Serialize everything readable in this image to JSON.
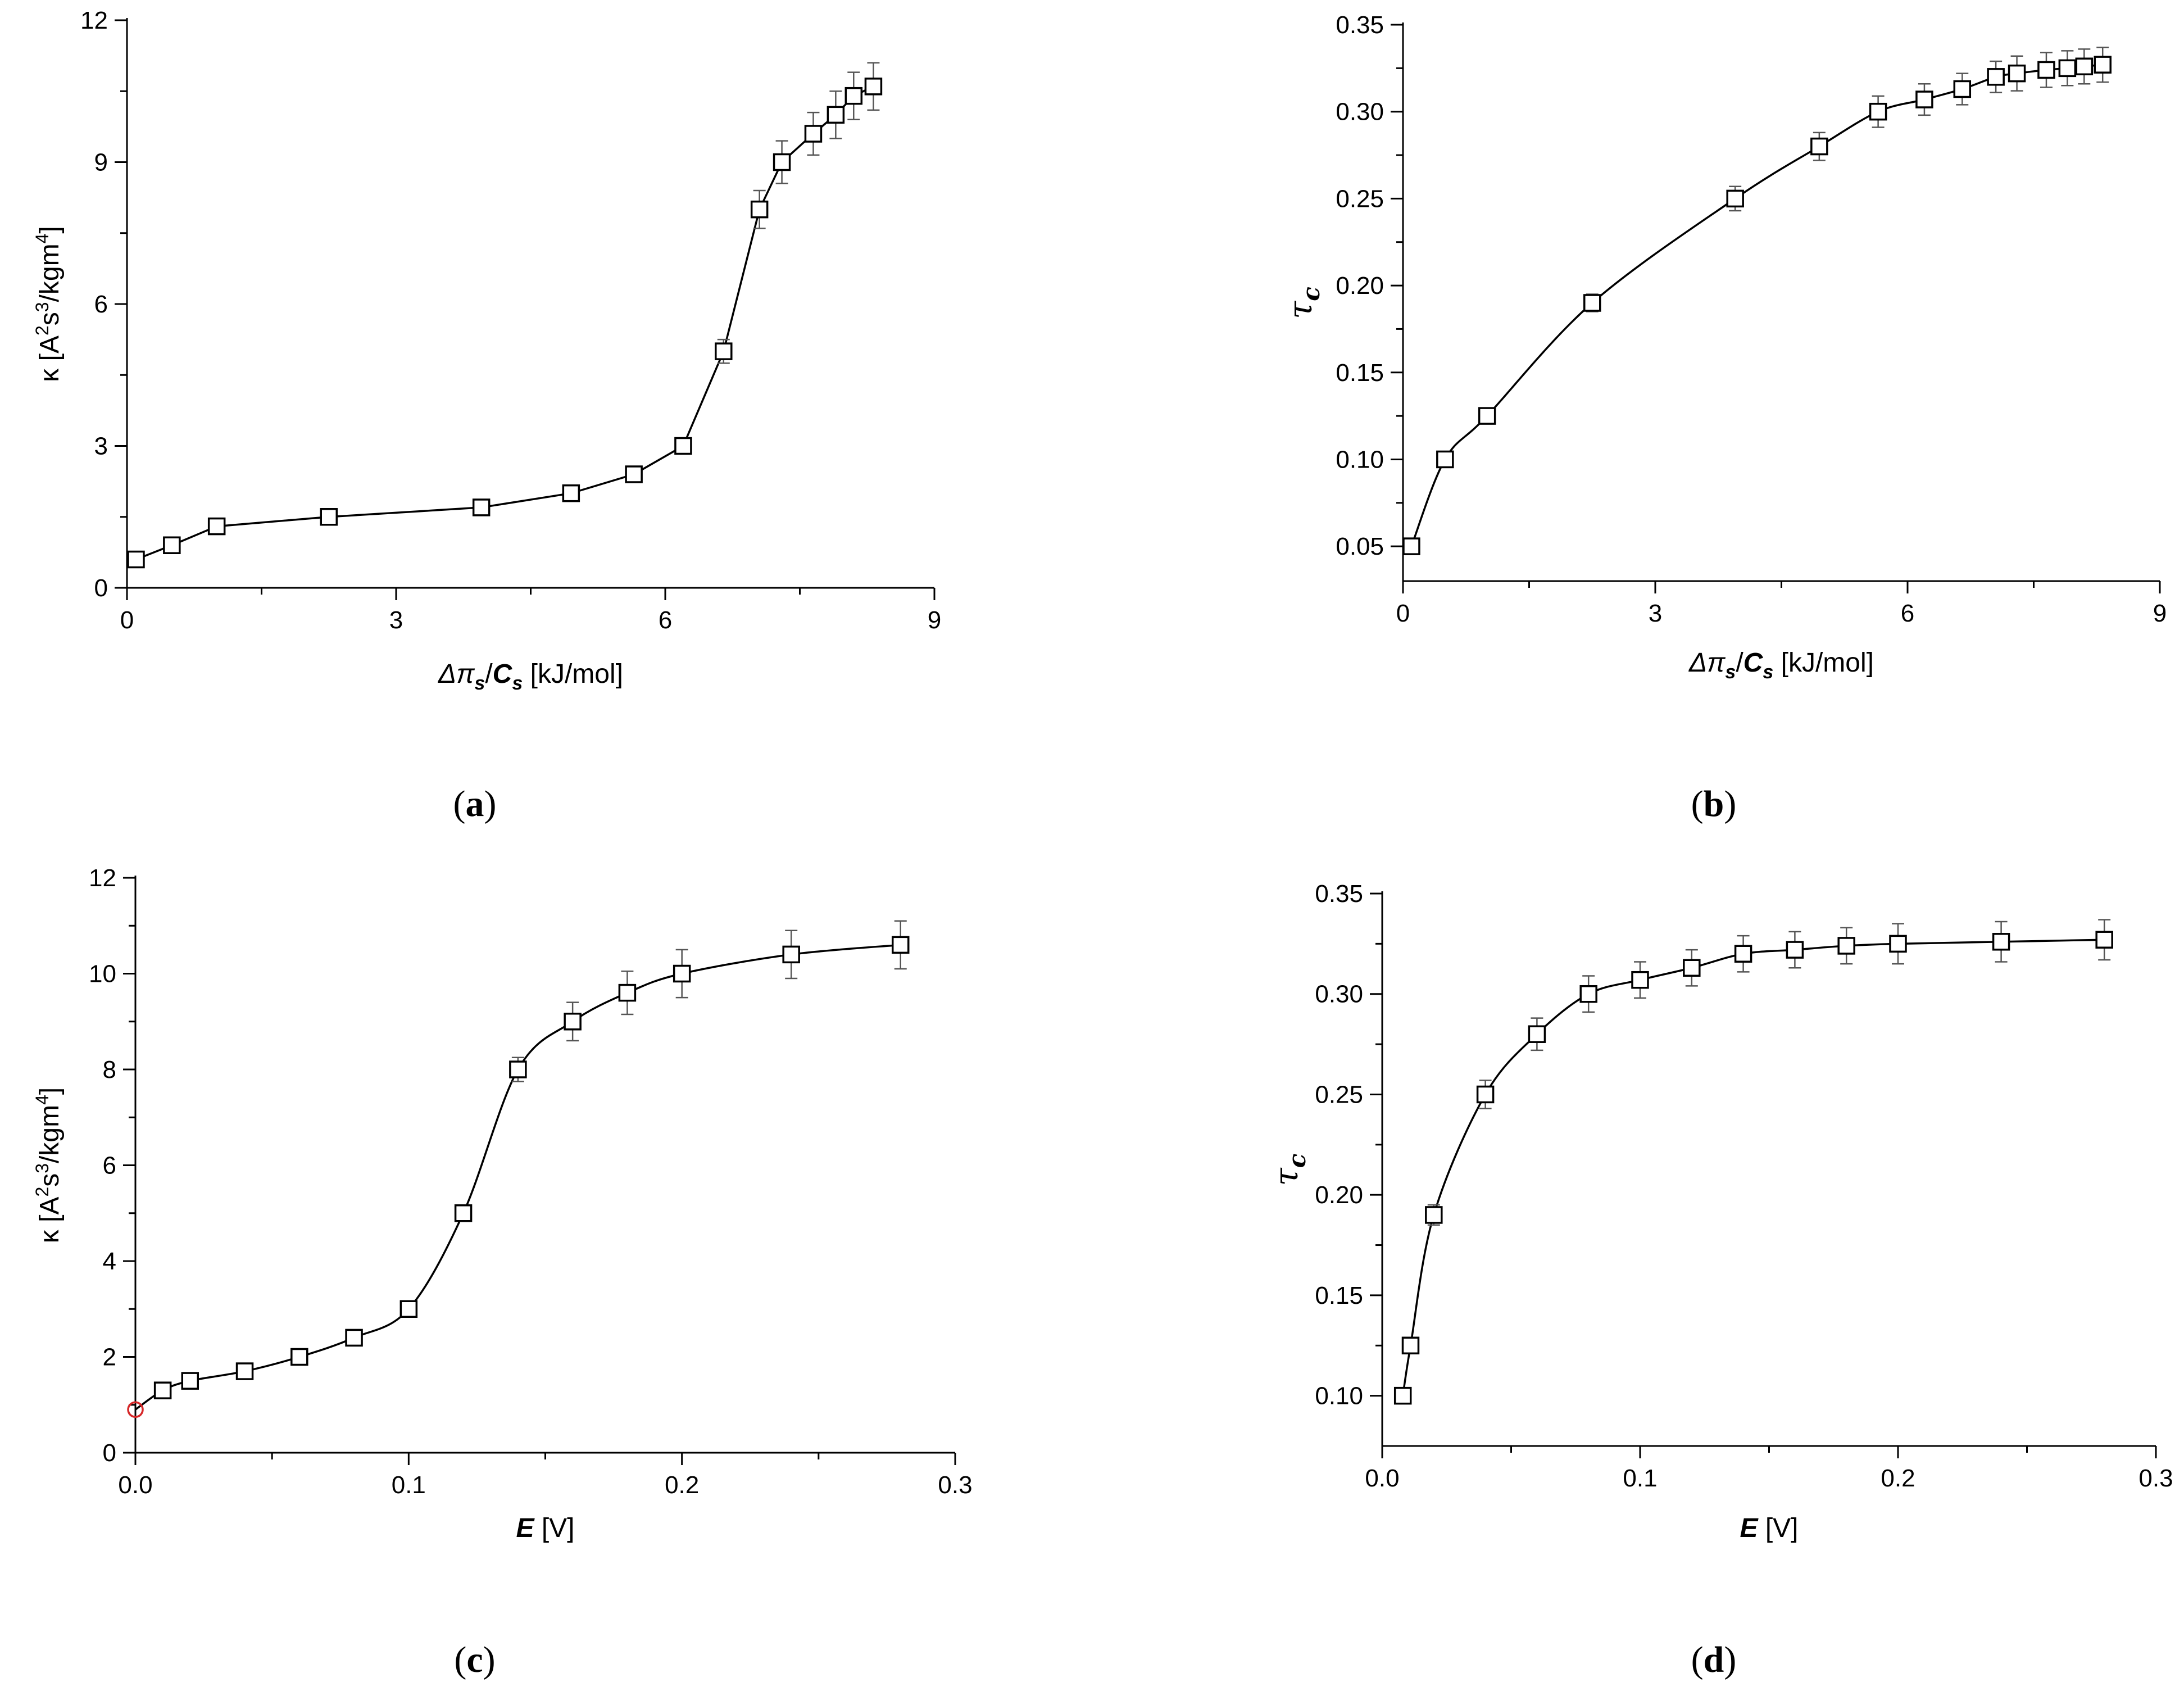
{
  "figure": {
    "panels": [
      "(a)",
      "(b)",
      "(c)",
      "(d)"
    ]
  },
  "chart_data": [
    {
      "id": "a",
      "type": "line",
      "panel_label": "(a)",
      "xlabel": {
        "prefix": "Δπ",
        "sub": "s",
        "sep": "/",
        "c": "C",
        "csub": "s",
        "unit": " [kJ/mol]"
      },
      "ylabel": {
        "p1": "κ [A",
        "s1": "2",
        "p2": "s",
        "s2": "3",
        "p3": "/kgm",
        "s3": "4",
        "p4": "]"
      },
      "xlim": [
        0,
        9
      ],
      "ylim": [
        0,
        12
      ],
      "xticks": [
        0,
        3,
        6,
        9
      ],
      "yticks": [
        0,
        3,
        6,
        9,
        12
      ],
      "xtick_labels": [
        "0",
        "3",
        "6",
        "9"
      ],
      "ytick_labels": [
        "0",
        "3",
        "6",
        "9",
        "12"
      ],
      "line_style": "polyline",
      "x": [
        0.1,
        0.5,
        1.0,
        2.25,
        3.95,
        4.95,
        5.65,
        6.2,
        6.65,
        7.05,
        7.3,
        7.65,
        7.9,
        8.1,
        8.32
      ],
      "y": [
        0.6,
        0.9,
        1.3,
        1.5,
        1.7,
        2.0,
        2.4,
        3.0,
        5.0,
        8.0,
        9.0,
        9.6,
        10.0,
        10.4,
        10.6
      ],
      "err": [
        0.1,
        0.1,
        0.1,
        0.1,
        0.1,
        0.1,
        0.1,
        0.12,
        0.25,
        0.4,
        0.45,
        0.45,
        0.5,
        0.5,
        0.5
      ]
    },
    {
      "id": "b",
      "type": "line",
      "panel_label": "(b)",
      "xlabel": {
        "prefix": "Δπ",
        "sub": "s",
        "sep": "/",
        "c": "C",
        "csub": "s",
        "unit": " [kJ/mol]"
      },
      "ylabel": {
        "tau": "τ",
        "sub": "c"
      },
      "xlim": [
        0,
        9
      ],
      "ylim": [
        0.03,
        0.35
      ],
      "xticks": [
        0,
        3,
        6,
        9
      ],
      "yticks": [
        0.05,
        0.1,
        0.15,
        0.2,
        0.25,
        0.3,
        0.35
      ],
      "xtick_labels": [
        "0",
        "3",
        "6",
        "9"
      ],
      "ytick_labels": [
        "0.05",
        "0.10",
        "0.15",
        "0.20",
        "0.25",
        "0.30",
        "0.35"
      ],
      "line_style": "smooth",
      "x": [
        0.1,
        0.5,
        1.0,
        2.25,
        3.95,
        4.95,
        5.65,
        6.2,
        6.65,
        7.05,
        7.3,
        7.65,
        7.9,
        8.1,
        8.32
      ],
      "y": [
        0.05,
        0.1,
        0.125,
        0.19,
        0.25,
        0.28,
        0.3,
        0.307,
        0.313,
        0.32,
        0.322,
        0.324,
        0.325,
        0.326,
        0.327
      ],
      "err": [
        0.003,
        0.003,
        0.003,
        0.005,
        0.007,
        0.008,
        0.009,
        0.009,
        0.009,
        0.009,
        0.01,
        0.01,
        0.01,
        0.01,
        0.01
      ]
    },
    {
      "id": "c",
      "type": "line",
      "panel_label": "(c)",
      "xlabel": {
        "e": "E",
        "unit": " [V]"
      },
      "ylabel": {
        "p1": "κ [A",
        "s1": "2",
        "p2": "s",
        "s2": "3",
        "p3": "/kgm",
        "s3": "4",
        "p4": "]"
      },
      "xlim": [
        0,
        0.3
      ],
      "ylim": [
        0,
        12
      ],
      "xticks": [
        0.0,
        0.1,
        0.2,
        0.3
      ],
      "yticks": [
        0,
        2,
        4,
        6,
        8,
        10,
        12
      ],
      "xtick_labels": [
        "0.0",
        "0.1",
        "0.2",
        "0.3"
      ],
      "ytick_labels": [
        "0",
        "2",
        "4",
        "6",
        "8",
        "10",
        "12"
      ],
      "line_style": "smooth",
      "x": [
        0.01,
        0.02,
        0.04,
        0.06,
        0.08,
        0.1,
        0.12,
        0.14,
        0.16,
        0.18,
        0.2,
        0.24,
        0.28
      ],
      "y": [
        1.3,
        1.5,
        1.7,
        2.0,
        2.4,
        3.0,
        5.0,
        8.0,
        9.0,
        9.6,
        10.0,
        10.4,
        10.6
      ],
      "err": [
        0.1,
        0.1,
        0.1,
        0.1,
        0.1,
        0.1,
        0.1,
        0.25,
        0.4,
        0.45,
        0.5,
        0.5,
        0.5
      ],
      "extra_point": {
        "x": 0.0,
        "y": 0.9,
        "color": "#d62728"
      },
      "curve_start": {
        "x": 0.0,
        "y": 0.9
      }
    },
    {
      "id": "d",
      "type": "line",
      "panel_label": "(d)",
      "xlabel": {
        "e": "E",
        "unit": " [V]"
      },
      "ylabel": {
        "tau": "τ",
        "sub": "c"
      },
      "xlim": [
        0,
        0.3
      ],
      "ylim": [
        0.075,
        0.35
      ],
      "xticks": [
        0.0,
        0.1,
        0.2,
        0.3
      ],
      "yticks": [
        0.1,
        0.15,
        0.2,
        0.25,
        0.3,
        0.35
      ],
      "xtick_labels": [
        "0.0",
        "0.1",
        "0.2",
        "0.3"
      ],
      "ytick_labels": [
        "0.10",
        "0.15",
        "0.20",
        "0.25",
        "0.30",
        "0.35"
      ],
      "line_style": "smooth",
      "x": [
        0.008,
        0.011,
        0.02,
        0.04,
        0.06,
        0.08,
        0.1,
        0.12,
        0.14,
        0.16,
        0.18,
        0.2,
        0.24,
        0.28
      ],
      "y": [
        0.1,
        0.125,
        0.19,
        0.25,
        0.28,
        0.3,
        0.307,
        0.313,
        0.32,
        0.322,
        0.324,
        0.325,
        0.326,
        0.327
      ],
      "err": [
        0.002,
        0.003,
        0.005,
        0.007,
        0.008,
        0.009,
        0.009,
        0.009,
        0.009,
        0.009,
        0.009,
        0.01,
        0.01,
        0.01
      ]
    }
  ]
}
